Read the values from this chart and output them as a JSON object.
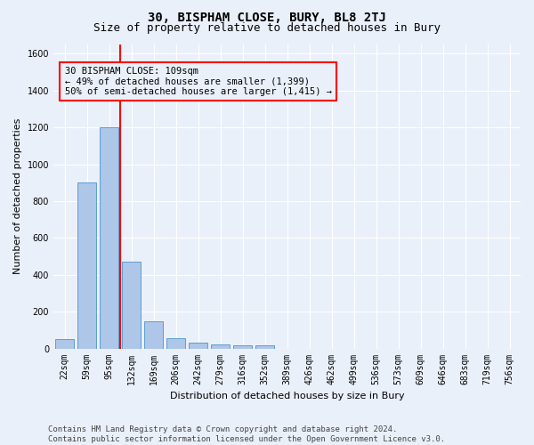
{
  "title": "30, BISPHAM CLOSE, BURY, BL8 2TJ",
  "subtitle": "Size of property relative to detached houses in Bury",
  "xlabel": "Distribution of detached houses by size in Bury",
  "ylabel": "Number of detached properties",
  "categories": [
    "22sqm",
    "59sqm",
    "95sqm",
    "132sqm",
    "169sqm",
    "206sqm",
    "242sqm",
    "279sqm",
    "316sqm",
    "352sqm",
    "389sqm",
    "426sqm",
    "462sqm",
    "499sqm",
    "536sqm",
    "573sqm",
    "609sqm",
    "646sqm",
    "683sqm",
    "719sqm",
    "756sqm"
  ],
  "values": [
    50,
    900,
    1200,
    470,
    150,
    55,
    30,
    20,
    15,
    15,
    0,
    0,
    0,
    0,
    0,
    0,
    0,
    0,
    0,
    0,
    0
  ],
  "bar_color": "#aec6e8",
  "bar_edge_color": "#5a9fd4",
  "red_line_x": 2.5,
  "annotation_line1": "30 BISPHAM CLOSE: 109sqm",
  "annotation_line2": "← 49% of detached houses are smaller (1,399)",
  "annotation_line3": "50% of semi-detached houses are larger (1,415) →",
  "ylim": [
    0,
    1650
  ],
  "yticks": [
    0,
    200,
    400,
    600,
    800,
    1000,
    1200,
    1400,
    1600
  ],
  "footer_line1": "Contains HM Land Registry data © Crown copyright and database right 2024.",
  "footer_line2": "Contains public sector information licensed under the Open Government Licence v3.0.",
  "background_color": "#eaf0f9",
  "grid_color": "#ffffff",
  "title_fontsize": 10,
  "subtitle_fontsize": 9,
  "axis_label_fontsize": 8,
  "tick_fontsize": 7,
  "footer_fontsize": 6.5,
  "annotation_fontsize": 7.5
}
